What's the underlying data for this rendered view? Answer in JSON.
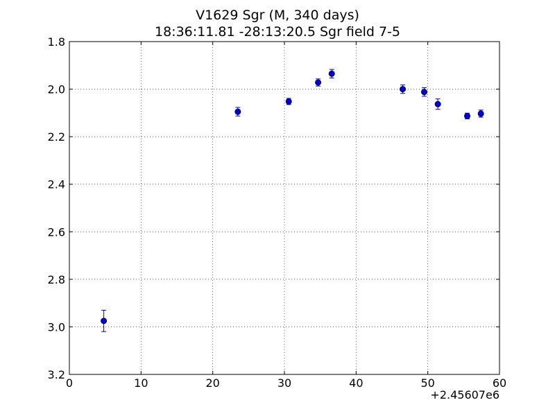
{
  "chart_data": {
    "type": "scatter",
    "title": "V1629 Sgr  (M, 340 days)",
    "subtitle": "18:36:11.81 -28:13:20.5 Sgr field 7-5",
    "xlabel": "",
    "ylabel": "",
    "x_offset_label": "+2.45607e6",
    "xlim": [
      0,
      60
    ],
    "ylim": [
      3.2,
      1.8
    ],
    "y_inverted": true,
    "x_ticks": [
      0,
      10,
      20,
      30,
      40,
      50,
      60
    ],
    "y_ticks": [
      1.8,
      2.0,
      2.2,
      2.4,
      2.6,
      2.8,
      3.0,
      3.2
    ],
    "x_tick_labels": [
      "0",
      "10",
      "20",
      "30",
      "40",
      "50",
      "60"
    ],
    "y_tick_labels": [
      "1.8",
      "2.0",
      "2.2",
      "2.4",
      "2.6",
      "2.8",
      "3.0",
      "3.2"
    ],
    "grid": true,
    "marker_color": "#0000cc",
    "points": [
      {
        "x": 4.8,
        "y": 2.975,
        "err": 0.045
      },
      {
        "x": 23.5,
        "y": 2.095,
        "err": 0.018
      },
      {
        "x": 30.6,
        "y": 2.052,
        "err": 0.013
      },
      {
        "x": 34.7,
        "y": 1.972,
        "err": 0.015
      },
      {
        "x": 36.6,
        "y": 1.935,
        "err": 0.018
      },
      {
        "x": 46.5,
        "y": 2.0,
        "err": 0.018
      },
      {
        "x": 49.5,
        "y": 2.012,
        "err": 0.018
      },
      {
        "x": 51.4,
        "y": 2.063,
        "err": 0.022
      },
      {
        "x": 55.5,
        "y": 2.113,
        "err": 0.012
      },
      {
        "x": 57.4,
        "y": 2.103,
        "err": 0.015
      }
    ]
  }
}
